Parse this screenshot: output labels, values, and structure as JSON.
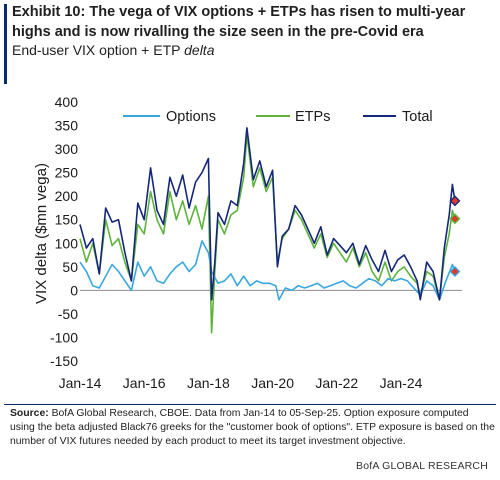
{
  "exhibit": {
    "title": "Exhibit 10: The vega of VIX options + ETPs has risen to multi-year highs and is now rivalling the size seen in the pre-Covid era",
    "subtitle_prefix": "End-user VIX option + ETP ",
    "subtitle_italic": "delta"
  },
  "chart_data": {
    "type": "line",
    "ylabel": "VIX delta ($mn vega)",
    "ylim": [
      -150,
      400
    ],
    "yticks": [
      400,
      350,
      300,
      250,
      200,
      150,
      100,
      50,
      0,
      -50,
      -100,
      -150
    ],
    "xlim": [
      2014.0,
      2025.9
    ],
    "xticks": [
      {
        "label": "Jan-14",
        "x": 2014
      },
      {
        "label": "Jan-16",
        "x": 2016
      },
      {
        "label": "Jan-18",
        "x": 2018
      },
      {
        "label": "Jan-20",
        "x": 2020
      },
      {
        "label": "Jan-22",
        "x": 2022
      },
      {
        "label": "Jan-24",
        "x": 2024
      }
    ],
    "legend_position": "top",
    "series": [
      {
        "name": "Options",
        "color": "#3aa7de",
        "points": [
          [
            2014.0,
            60
          ],
          [
            2014.2,
            40
          ],
          [
            2014.4,
            10
          ],
          [
            2014.6,
            5
          ],
          [
            2014.8,
            30
          ],
          [
            2015.0,
            55
          ],
          [
            2015.2,
            40
          ],
          [
            2015.4,
            20
          ],
          [
            2015.6,
            0
          ],
          [
            2015.8,
            60
          ],
          [
            2016.0,
            30
          ],
          [
            2016.2,
            50
          ],
          [
            2016.4,
            20
          ],
          [
            2016.6,
            15
          ],
          [
            2016.8,
            35
          ],
          [
            2017.0,
            50
          ],
          [
            2017.2,
            60
          ],
          [
            2017.4,
            40
          ],
          [
            2017.6,
            55
          ],
          [
            2017.8,
            105
          ],
          [
            2018.0,
            80
          ],
          [
            2018.1,
            40
          ],
          [
            2018.3,
            15
          ],
          [
            2018.5,
            20
          ],
          [
            2018.7,
            35
          ],
          [
            2018.9,
            10
          ],
          [
            2019.1,
            30
          ],
          [
            2019.3,
            10
          ],
          [
            2019.5,
            20
          ],
          [
            2019.7,
            15
          ],
          [
            2019.9,
            15
          ],
          [
            2020.1,
            10
          ],
          [
            2020.2,
            -20
          ],
          [
            2020.4,
            5
          ],
          [
            2020.6,
            0
          ],
          [
            2020.8,
            10
          ],
          [
            2021.0,
            5
          ],
          [
            2021.2,
            10
          ],
          [
            2021.4,
            15
          ],
          [
            2021.6,
            5
          ],
          [
            2021.8,
            10
          ],
          [
            2022.0,
            15
          ],
          [
            2022.2,
            20
          ],
          [
            2022.4,
            10
          ],
          [
            2022.6,
            5
          ],
          [
            2022.8,
            15
          ],
          [
            2023.0,
            25
          ],
          [
            2023.2,
            20
          ],
          [
            2023.4,
            10
          ],
          [
            2023.6,
            25
          ],
          [
            2023.8,
            20
          ],
          [
            2024.0,
            25
          ],
          [
            2024.2,
            20
          ],
          [
            2024.4,
            5
          ],
          [
            2024.6,
            -10
          ],
          [
            2024.8,
            20
          ],
          [
            2025.0,
            10
          ],
          [
            2025.2,
            -20
          ],
          [
            2025.4,
            20
          ],
          [
            2025.6,
            55
          ],
          [
            2025.68,
            40
          ]
        ]
      },
      {
        "name": "ETPs",
        "color": "#5eb33b",
        "points": [
          [
            2014.0,
            110
          ],
          [
            2014.2,
            60
          ],
          [
            2014.4,
            100
          ],
          [
            2014.6,
            35
          ],
          [
            2014.8,
            150
          ],
          [
            2015.0,
            95
          ],
          [
            2015.2,
            110
          ],
          [
            2015.4,
            60
          ],
          [
            2015.6,
            20
          ],
          [
            2015.8,
            140
          ],
          [
            2016.0,
            120
          ],
          [
            2016.2,
            210
          ],
          [
            2016.4,
            150
          ],
          [
            2016.6,
            120
          ],
          [
            2016.8,
            210
          ],
          [
            2017.0,
            150
          ],
          [
            2017.2,
            190
          ],
          [
            2017.4,
            140
          ],
          [
            2017.6,
            180
          ],
          [
            2017.8,
            130
          ],
          [
            2018.0,
            200
          ],
          [
            2018.1,
            -90
          ],
          [
            2018.2,
            40
          ],
          [
            2018.3,
            150
          ],
          [
            2018.5,
            120
          ],
          [
            2018.7,
            160
          ],
          [
            2018.9,
            170
          ],
          [
            2019.1,
            240
          ],
          [
            2019.2,
            330
          ],
          [
            2019.4,
            220
          ],
          [
            2019.6,
            260
          ],
          [
            2019.8,
            210
          ],
          [
            2020.0,
            240
          ],
          [
            2020.15,
            60
          ],
          [
            2020.3,
            110
          ],
          [
            2020.5,
            130
          ],
          [
            2020.7,
            170
          ],
          [
            2020.9,
            150
          ],
          [
            2021.1,
            120
          ],
          [
            2021.3,
            90
          ],
          [
            2021.5,
            120
          ],
          [
            2021.7,
            70
          ],
          [
            2021.9,
            100
          ],
          [
            2022.1,
            80
          ],
          [
            2022.3,
            60
          ],
          [
            2022.5,
            90
          ],
          [
            2022.7,
            50
          ],
          [
            2022.9,
            80
          ],
          [
            2023.1,
            40
          ],
          [
            2023.3,
            20
          ],
          [
            2023.5,
            60
          ],
          [
            2023.7,
            20
          ],
          [
            2023.9,
            40
          ],
          [
            2024.1,
            50
          ],
          [
            2024.3,
            30
          ],
          [
            2024.5,
            15
          ],
          [
            2024.6,
            -10
          ],
          [
            2024.8,
            40
          ],
          [
            2025.0,
            30
          ],
          [
            2025.2,
            -20
          ],
          [
            2025.35,
            70
          ],
          [
            2025.5,
            120
          ],
          [
            2025.6,
            170
          ],
          [
            2025.68,
            150
          ]
        ]
      },
      {
        "name": "Total",
        "color": "#15277a",
        "points": [
          [
            2014.0,
            140
          ],
          [
            2014.2,
            90
          ],
          [
            2014.4,
            110
          ],
          [
            2014.6,
            35
          ],
          [
            2014.8,
            175
          ],
          [
            2015.0,
            145
          ],
          [
            2015.2,
            150
          ],
          [
            2015.4,
            80
          ],
          [
            2015.6,
            20
          ],
          [
            2015.8,
            185
          ],
          [
            2016.0,
            150
          ],
          [
            2016.2,
            260
          ],
          [
            2016.4,
            170
          ],
          [
            2016.6,
            140
          ],
          [
            2016.8,
            240
          ],
          [
            2017.0,
            200
          ],
          [
            2017.2,
            245
          ],
          [
            2017.4,
            175
          ],
          [
            2017.6,
            230
          ],
          [
            2017.8,
            250
          ],
          [
            2018.0,
            280
          ],
          [
            2018.1,
            -20
          ],
          [
            2018.2,
            60
          ],
          [
            2018.3,
            165
          ],
          [
            2018.5,
            140
          ],
          [
            2018.7,
            190
          ],
          [
            2018.9,
            180
          ],
          [
            2019.1,
            270
          ],
          [
            2019.2,
            345
          ],
          [
            2019.4,
            235
          ],
          [
            2019.6,
            275
          ],
          [
            2019.8,
            220
          ],
          [
            2020.0,
            255
          ],
          [
            2020.15,
            50
          ],
          [
            2020.3,
            115
          ],
          [
            2020.5,
            130
          ],
          [
            2020.7,
            180
          ],
          [
            2020.9,
            160
          ],
          [
            2021.1,
            130
          ],
          [
            2021.3,
            100
          ],
          [
            2021.5,
            135
          ],
          [
            2021.7,
            75
          ],
          [
            2021.9,
            110
          ],
          [
            2022.1,
            95
          ],
          [
            2022.3,
            80
          ],
          [
            2022.5,
            100
          ],
          [
            2022.7,
            55
          ],
          [
            2022.9,
            95
          ],
          [
            2023.1,
            65
          ],
          [
            2023.3,
            40
          ],
          [
            2023.5,
            85
          ],
          [
            2023.7,
            40
          ],
          [
            2023.9,
            65
          ],
          [
            2024.1,
            75
          ],
          [
            2024.3,
            50
          ],
          [
            2024.5,
            20
          ],
          [
            2024.6,
            -20
          ],
          [
            2024.8,
            60
          ],
          [
            2025.0,
            40
          ],
          [
            2025.2,
            -20
          ],
          [
            2025.35,
            90
          ],
          [
            2025.5,
            160
          ],
          [
            2025.6,
            225
          ],
          [
            2025.68,
            190
          ]
        ]
      }
    ],
    "end_markers": [
      {
        "series": "Total",
        "x": 2025.68,
        "y": 190
      },
      {
        "series": "ETPs",
        "x": 2025.68,
        "y": 152
      },
      {
        "series": "Options",
        "x": 2025.68,
        "y": 40
      }
    ],
    "marker_color": "#e0392b"
  },
  "footer": {
    "source_label": "Source:",
    "source_text": " BofA Global Research, CBOE.  Data from Jan-14 to 05-Sep-25.  Option exposure computed using the beta adjusted Black76 greeks for the \"customer book of options\".  ETP exposure is based on the number of VIX futures needed by each product to meet its target investment objective.",
    "credit": "BofA GLOBAL RESEARCH"
  }
}
